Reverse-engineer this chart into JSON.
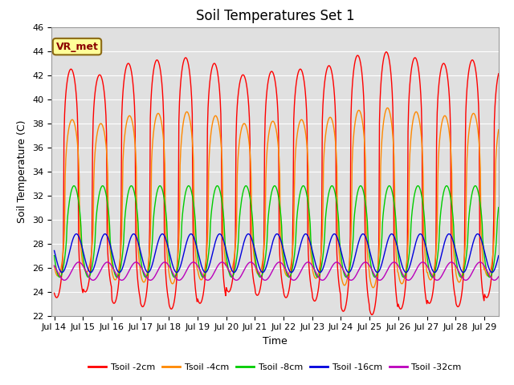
{
  "title": "Soil Temperatures Set 1",
  "xlabel": "Time",
  "ylabel": "Soil Temperature (C)",
  "ylim": [
    22,
    46
  ],
  "x_ticks_labels": [
    "Jul 14",
    "Jul 15",
    "Jul 16",
    "Jul 17",
    "Jul 18",
    "Jul 19",
    "Jul 20",
    "Jul 21",
    "Jul 22",
    "Jul 23",
    "Jul 24",
    "Jul 25",
    "Jul 26",
    "Jul 27",
    "Jul 28",
    "Jul 29"
  ],
  "x_ticks_pos": [
    0,
    1,
    2,
    3,
    4,
    5,
    6,
    7,
    8,
    9,
    10,
    11,
    12,
    13,
    14,
    15
  ],
  "series": [
    {
      "label": "Tsoil -2cm",
      "color": "#FF0000",
      "amplitude": 9.5,
      "mean": 33.0,
      "phase_hours": 14.0,
      "sharpness": 3.5,
      "min_base": 24.0
    },
    {
      "label": "Tsoil -4cm",
      "color": "#FF8800",
      "amplitude": 6.5,
      "mean": 31.8,
      "phase_hours": 15.0,
      "sharpness": 2.5,
      "min_base": 25.0
    },
    {
      "label": "Tsoil -8cm",
      "color": "#00CC00",
      "amplitude": 3.8,
      "mean": 29.0,
      "phase_hours": 16.5,
      "sharpness": 1.5,
      "min_base": 26.5
    },
    {
      "label": "Tsoil -16cm",
      "color": "#0000DD",
      "amplitude": 1.6,
      "mean": 27.2,
      "phase_hours": 18.5,
      "sharpness": 1.0,
      "min_base": 25.8
    },
    {
      "label": "Tsoil -32cm",
      "color": "#BB00BB",
      "amplitude": 0.75,
      "mean": 25.7,
      "phase_hours": 20.5,
      "sharpness": 1.0,
      "min_base": 25.0
    }
  ],
  "annotation_text": "VR_met",
  "bg_color": "#E0E0E0",
  "fig_color": "#FFFFFF",
  "grid_color": "#FFFFFF",
  "title_fontsize": 12,
  "label_fontsize": 9,
  "tick_fontsize": 8,
  "legend_fontsize": 8
}
